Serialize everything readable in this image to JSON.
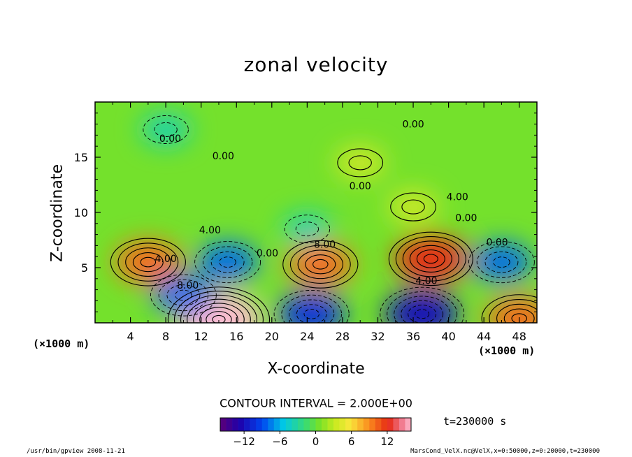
{
  "chart_data": {
    "type": "heatmap",
    "title": "zonal velocity",
    "xlabel": "X-coordinate",
    "ylabel": "Z-coordinate",
    "x_unit": "(×1000 m)",
    "xlim": [
      0,
      50
    ],
    "ylim": [
      0,
      20
    ],
    "x_ticks": [
      "4",
      "8",
      "12",
      "16",
      "20",
      "24",
      "28",
      "32",
      "36",
      "40",
      "44",
      "48"
    ],
    "y_ticks": [
      "5",
      "10",
      "15"
    ],
    "contour_interval": "CONTOUR INTERVAL = 2.000E+00",
    "colorbar": {
      "min": -16,
      "max": 16,
      "ticks": [
        "−12",
        "−6",
        "0",
        "6",
        "12"
      ]
    },
    "features": [
      {
        "x": 14,
        "z": 0.3,
        "value": 16
      },
      {
        "x": 25.5,
        "z": 5.3,
        "value": 10
      },
      {
        "x": 38,
        "z": 5.8,
        "value": 12
      },
      {
        "x": 6,
        "z": 5.5,
        "value": 10
      },
      {
        "x": 48,
        "z": 0.4,
        "value": 10
      },
      {
        "x": 30,
        "z": 14.5,
        "value": 4
      },
      {
        "x": 36,
        "z": 10.5,
        "value": 4
      },
      {
        "x": 15,
        "z": 5.5,
        "value": -8
      },
      {
        "x": 10,
        "z": 2.5,
        "value": -8
      },
      {
        "x": 37,
        "z": 0.8,
        "value": -12
      },
      {
        "x": 24.5,
        "z": 0.8,
        "value": -10
      },
      {
        "x": 46,
        "z": 5.5,
        "value": -8
      },
      {
        "x": 8,
        "z": 17.5,
        "value": -4
      },
      {
        "x": 24,
        "z": 8.5,
        "value": -4
      }
    ],
    "contour_labels": [
      {
        "x": 8.5,
        "z": 16.4,
        "text": "0.00"
      },
      {
        "x": 14.5,
        "z": 14.8,
        "text": "0.00"
      },
      {
        "x": 30,
        "z": 12.1,
        "text": "0.00"
      },
      {
        "x": 36,
        "z": 17.7,
        "text": "0.00"
      },
      {
        "x": 42,
        "z": 9.2,
        "text": "0.00"
      },
      {
        "x": 45.5,
        "z": 7.0,
        "text": "0.00"
      },
      {
        "x": 13,
        "z": 8.1,
        "text": "4.00"
      },
      {
        "x": 41,
        "z": 11.1,
        "text": "4.00"
      },
      {
        "x": 8,
        "z": 5.5,
        "text": "4.00"
      },
      {
        "x": 37.5,
        "z": 3.5,
        "text": "4.00"
      },
      {
        "x": 10.5,
        "z": 3.1,
        "text": "8.00"
      },
      {
        "x": 26,
        "z": 6.8,
        "text": "8.00"
      },
      {
        "x": 19.5,
        "z": 6.0,
        "text": "0.00"
      }
    ]
  },
  "meta": {
    "time": "t=230000 s",
    "footer_left": "/usr/bin/gpview  2008-11-21",
    "footer_right": "MarsCond_VelX.nc@VelX,x=0:50000,z=0:20000,t=230000"
  }
}
